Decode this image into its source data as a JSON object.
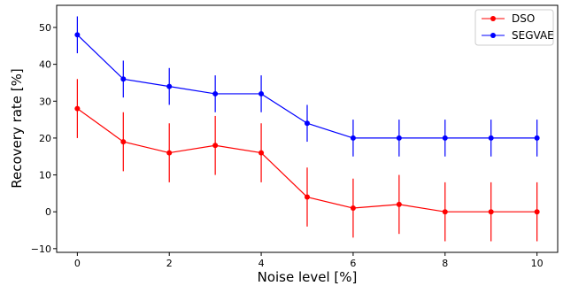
{
  "chart_data": {
    "type": "line",
    "title": "",
    "xlabel": "Noise level [%]",
    "ylabel": "Recovery rate [%]",
    "xlim": [
      -0.45,
      10.45
    ],
    "ylim": [
      -11,
      56
    ],
    "xticks": [
      0,
      2,
      4,
      6,
      8,
      10
    ],
    "yticks": [
      -10,
      0,
      10,
      20,
      30,
      40,
      50
    ],
    "grid": false,
    "legend": "top-right",
    "x": [
      0,
      1,
      2,
      3,
      4,
      5,
      6,
      7,
      8,
      9,
      10
    ],
    "series": [
      {
        "name": "DSO",
        "color": "#ff0000",
        "values": [
          28,
          19,
          16,
          18,
          16,
          4,
          1,
          2,
          0,
          0,
          0
        ],
        "error": [
          8,
          8,
          8,
          8,
          8,
          8,
          8,
          8,
          8,
          8,
          8
        ]
      },
      {
        "name": "SEGVAE",
        "color": "#0000ff",
        "values": [
          48,
          36,
          34,
          32,
          32,
          24,
          20,
          20,
          20,
          20,
          20
        ],
        "error": [
          5,
          5,
          5,
          5,
          5,
          5,
          5,
          5,
          5,
          5,
          5
        ]
      }
    ]
  }
}
